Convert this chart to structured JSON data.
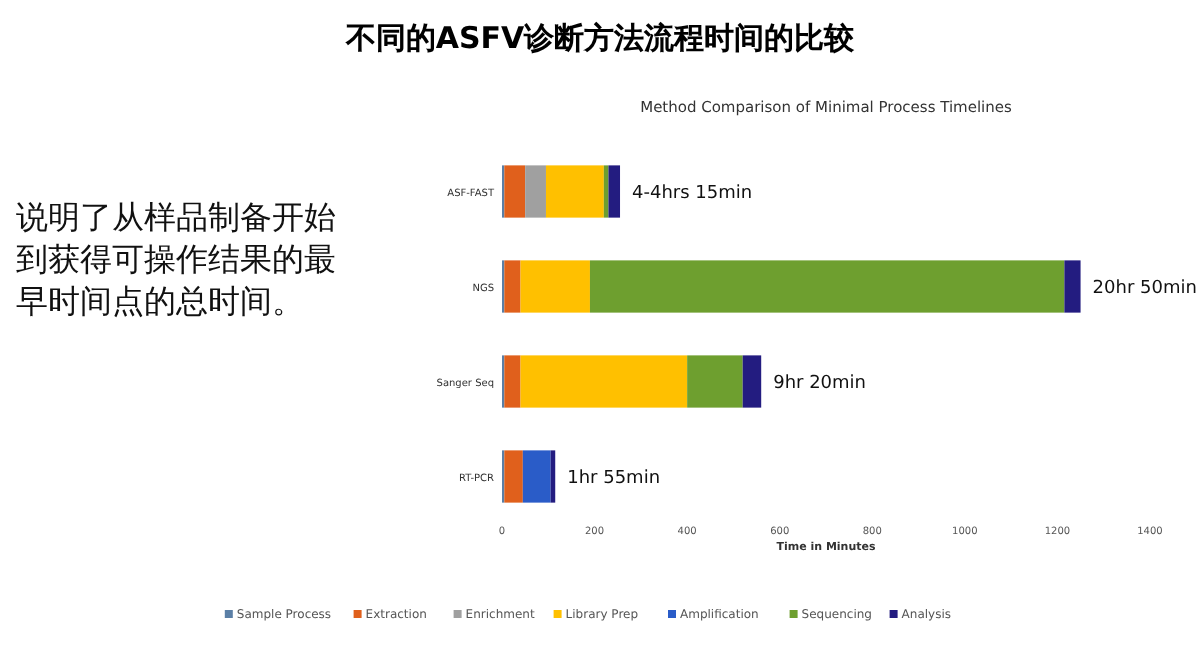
{
  "chart_data": {
    "type": "bar",
    "orientation": "horizontal",
    "stacked": true,
    "title": "不同的ASFV诊断方法流程时间的比较",
    "subtitle": "Method Comparison of Minimal Process Timelines",
    "xlabel": "Time in Minutes",
    "categories": [
      "ASF-FAST",
      "NGS",
      "Sanger Seq",
      "RT-PCR"
    ],
    "series": [
      {
        "name": "Sample Process",
        "color": "#5b7fa6",
        "values": [
          5,
          5,
          5,
          5
        ]
      },
      {
        "name": "Extraction",
        "color": "#e0601c",
        "values": [
          45,
          35,
          35,
          40
        ]
      },
      {
        "name": "Enrichment",
        "color": "#a0a0a0",
        "values": [
          45,
          0,
          0,
          0
        ]
      },
      {
        "name": "Library Prep",
        "color": "#ffc000",
        "values": [
          125,
          150,
          360,
          0
        ]
      },
      {
        "name": "Amplification",
        "color": "#2a5cc8",
        "values": [
          0,
          0,
          0,
          60
        ]
      },
      {
        "name": "Sequencing",
        "color": "#6e9f2f",
        "values": [
          10,
          1025,
          120,
          0
        ]
      },
      {
        "name": "Analysis",
        "color": "#231c80",
        "values": [
          25,
          35,
          40,
          10
        ]
      }
    ],
    "xlim": [
      0,
      1400
    ],
    "xticks": [
      0,
      200,
      400,
      600,
      800,
      1000,
      1200,
      1400
    ],
    "legend": "bottom",
    "annotations": [
      {
        "text": "4-4hrs 15min",
        "x": 255,
        "y": "ASF-FAST"
      },
      {
        "text": "20hr 50min",
        "x": 1250,
        "y": "NGS"
      },
      {
        "text": "9hr 20min",
        "x": 560,
        "y": "Sanger Seq"
      },
      {
        "text": "1hr 55min",
        "x": 115,
        "y": "RT-PCR"
      },
      "说明了从样品制备开始到获得可操作结果的最早时间点的总时间。"
    ]
  }
}
